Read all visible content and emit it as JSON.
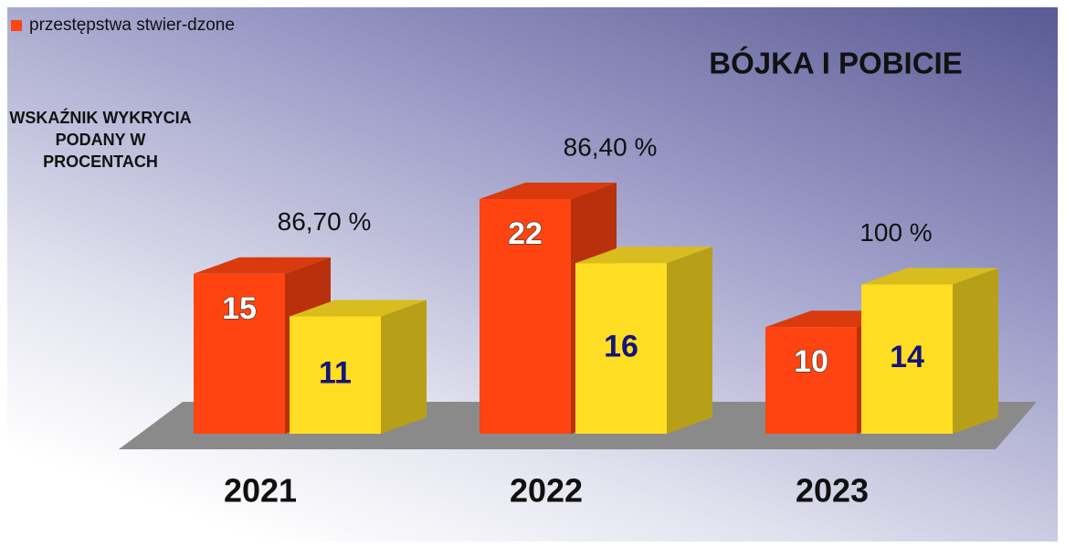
{
  "chart_data": {
    "type": "bar3d",
    "title": "BÓJKA I POBICIE",
    "note": "WSKAŹNIK WYKRYCIA PODANY W PROCENTACH",
    "categories": [
      "2021",
      "2022",
      "2023"
    ],
    "series": [
      {
        "name": "przestępstwa stwier-dzone",
        "color": "#ff4411",
        "values": [
          15,
          22,
          10
        ]
      },
      {
        "color": "#ffdd22",
        "values": [
          11,
          16,
          14
        ]
      }
    ],
    "annotations": [
      "86,70 %",
      "86,40 %",
      "100 %"
    ],
    "ylim": [
      0,
      25
    ]
  }
}
